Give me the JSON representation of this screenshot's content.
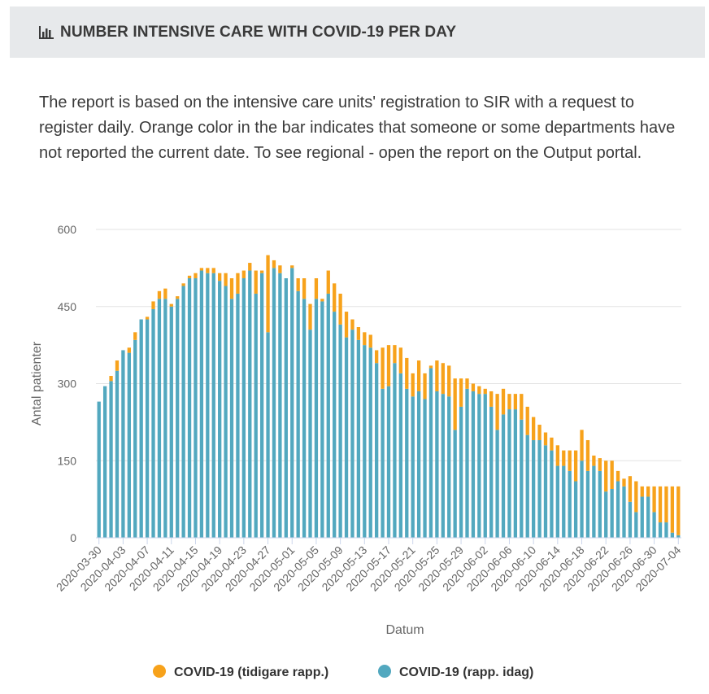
{
  "header": {
    "title": "NUMBER INTENSIVE CARE WITH COVID-19 PER DAY",
    "icon": "bar-chart-icon"
  },
  "description": "The report is based on the intensive care units' registration to SIR with a request to register daily. Orange color in the bar indicates that someone or some departments have not reported the current date. To see regional - open the report on the Output portal.",
  "colors": {
    "today": "#52a8bf",
    "previous": "#f7a21b",
    "header_bg": "#e7e9eb"
  },
  "chart_data": {
    "type": "bar",
    "stacked": true,
    "xlabel": "Datum",
    "ylabel": "Antal patienter",
    "ylim": [
      0,
      600
    ],
    "yticks": [
      0,
      150,
      300,
      450,
      600
    ],
    "start_date": "2020-03-30",
    "xtick_labels": [
      "2020-03-30",
      "2020-04-03",
      "2020-04-07",
      "2020-04-11",
      "2020-04-15",
      "2020-04-19",
      "2020-04-23",
      "2020-04-27",
      "2020-05-01",
      "2020-05-05",
      "2020-05-09",
      "2020-05-13",
      "2020-05-17",
      "2020-05-21",
      "2020-05-25",
      "2020-05-29",
      "2020-06-02",
      "2020-06-06",
      "2020-06-10",
      "2020-06-14",
      "2020-06-18",
      "2020-06-22",
      "2020-06-26",
      "2020-06-30",
      "2020-07-04"
    ],
    "legend": "bottom",
    "series": [
      {
        "name": "COVID-19 (tidigare rapp.)",
        "color": "#f7a21b",
        "values": [
          0,
          0,
          10,
          20,
          0,
          10,
          15,
          0,
          5,
          15,
          15,
          20,
          5,
          5,
          5,
          5,
          10,
          5,
          10,
          10,
          15,
          25,
          40,
          40,
          15,
          15,
          45,
          5,
          150,
          15,
          15,
          0,
          5,
          25,
          40,
          50,
          40,
          5,
          45,
          55,
          60,
          50,
          20,
          25,
          25,
          25,
          25,
          80,
          80,
          35,
          50,
          60,
          45,
          60,
          50,
          5,
          60,
          60,
          60,
          100,
          55,
          20,
          15,
          15,
          10,
          30,
          70,
          50,
          30,
          30,
          50,
          55,
          45,
          30,
          25,
          25,
          40,
          30,
          40,
          60,
          60,
          60,
          20,
          25,
          60,
          55,
          20,
          15,
          50,
          60,
          20,
          20,
          50,
          70,
          70,
          90,
          95
        ]
      },
      {
        "name": "COVID-19 (rapp. idag)",
        "color": "#52a8bf",
        "values": [
          265,
          295,
          305,
          325,
          365,
          360,
          385,
          425,
          425,
          445,
          465,
          465,
          450,
          465,
          490,
          505,
          505,
          520,
          515,
          515,
          500,
          490,
          465,
          475,
          505,
          520,
          475,
          515,
          400,
          525,
          515,
          505,
          525,
          480,
          465,
          405,
          465,
          460,
          475,
          440,
          415,
          390,
          405,
          385,
          375,
          370,
          340,
          290,
          295,
          340,
          320,
          290,
          275,
          285,
          270,
          330,
          285,
          280,
          275,
          210,
          255,
          290,
          285,
          280,
          280,
          255,
          210,
          240,
          250,
          250,
          230,
          200,
          190,
          190,
          180,
          170,
          140,
          140,
          130,
          110,
          150,
          130,
          140,
          130,
          90,
          95,
          110,
          100,
          70,
          50,
          80,
          80,
          50,
          30,
          30,
          10,
          5
        ]
      }
    ]
  }
}
